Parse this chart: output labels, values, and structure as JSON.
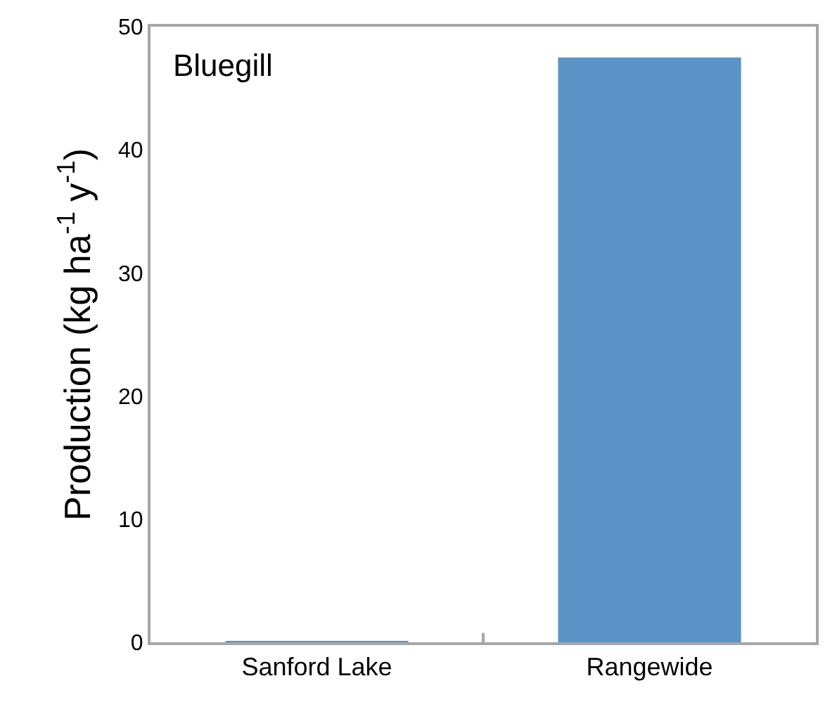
{
  "chart_data": {
    "type": "bar",
    "categories": [
      "Sanford Lake",
      "Rangewide"
    ],
    "values": [
      0.1,
      47.5
    ],
    "color": "#5b93c7",
    "ylabel": "Production (kg ha$^{-1}$ y$^{-1}$)",
    "annotations": [
      "Bluegill"
    ],
    "ylim": [
      0,
      50
    ],
    "yticks": [
      0,
      10,
      20,
      30,
      40,
      50
    ]
  }
}
